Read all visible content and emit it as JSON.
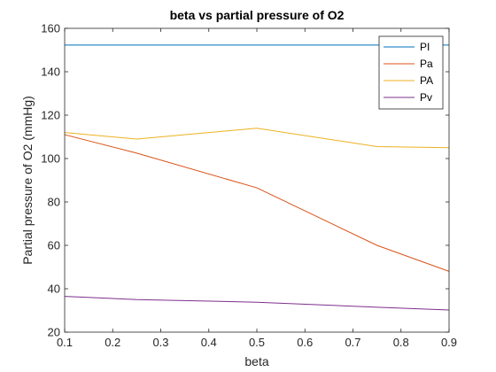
{
  "chart_data": {
    "type": "line",
    "title": "beta vs partial pressure of O2",
    "xlabel": "beta",
    "ylabel": "Partial pressure of O2 (mmHg)",
    "xlim": [
      0.1,
      0.9
    ],
    "ylim": [
      20,
      160
    ],
    "xticks": [
      "0.1",
      "0.2",
      "0.3",
      "0.4",
      "0.5",
      "0.6",
      "0.7",
      "0.8",
      "0.9"
    ],
    "yticks": [
      "20",
      "40",
      "60",
      "80",
      "100",
      "120",
      "140",
      "160"
    ],
    "grid": false,
    "legend_position": "top-right",
    "x": [
      0.1,
      0.25,
      0.5,
      0.75,
      0.9
    ],
    "series": [
      {
        "name": "PI",
        "color": "#0072BD",
        "values": [
          152.3,
          152.3,
          152.3,
          152.3,
          152.3
        ]
      },
      {
        "name": "Pa",
        "color": "#D95319",
        "values": [
          111,
          102.5,
          86.5,
          60,
          48
        ]
      },
      {
        "name": "PA",
        "color": "#EDB120",
        "values": [
          112,
          109,
          114,
          105.5,
          105
        ]
      },
      {
        "name": "Pv",
        "color": "#7E2F8E",
        "values": [
          36.5,
          35,
          33.8,
          31.5,
          30.2
        ]
      }
    ]
  }
}
